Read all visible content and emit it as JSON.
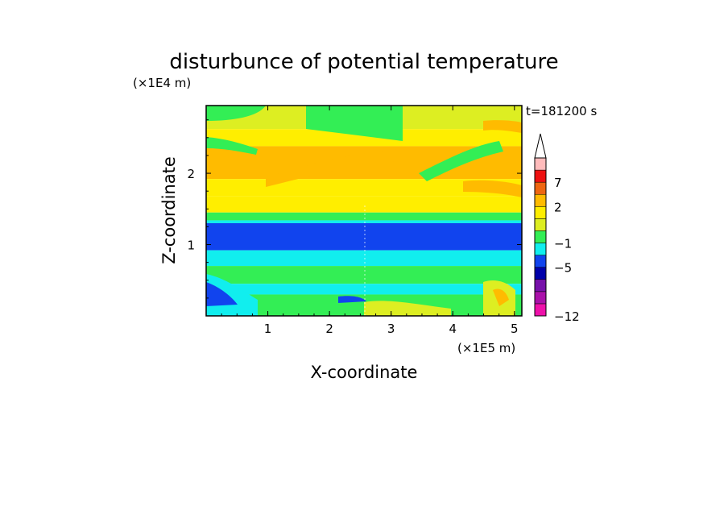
{
  "chart_data": {
    "type": "heatmap",
    "title": "disturbunce of potential temperature",
    "time_label": "t=181200 s",
    "xlabel": "X-coordinate",
    "ylabel": "Z-coordinate",
    "x_unit": "(×1E5 m)",
    "y_unit": "(×1E4 m)",
    "xlim": [
      0,
      5.12
    ],
    "ylim": [
      0,
      2.95
    ],
    "x_ticks": [
      1,
      2,
      3,
      4,
      5
    ],
    "y_ticks": [
      1,
      2
    ],
    "x_tick_labels": [
      "1",
      "2",
      "3",
      "4",
      "5"
    ],
    "y_tick_labels": [
      "1",
      "2"
    ],
    "colorbar": {
      "levels": [
        -12,
        -11,
        -9,
        -7,
        -5,
        -3,
        -1,
        0,
        1,
        2,
        4,
        7,
        9,
        11
      ],
      "colors": [
        "#ee11aa",
        "#aa11aa",
        "#7711aa",
        "#0000aa",
        "#1144ee",
        "#11eeee",
        "#33ee55",
        "#ddee22",
        "#ffee00",
        "#ffbb00",
        "#ee6611",
        "#ee1111",
        "#ffbbbb"
      ],
      "extend_max_color": "#ffffff",
      "tick_values": [
        -12,
        -5,
        -1,
        2,
        7
      ],
      "tick_labels": [
        "−12",
        "−5",
        "−1",
        "2",
        "7"
      ]
    },
    "bands": [
      {
        "z0": 2.95,
        "z1": 2.62,
        "value": 0.5
      },
      {
        "z0": 2.62,
        "z1": 2.38,
        "value": 1.5
      },
      {
        "z0": 2.38,
        "z1": 1.92,
        "value": 2.5
      },
      {
        "z0": 1.92,
        "z1": 1.68,
        "value": 1.5
      },
      {
        "z0": 1.68,
        "z1": 1.45,
        "value": 1.5
      },
      {
        "z0": 1.45,
        "z1": 1.34,
        "value": -0.5
      },
      {
        "z0": 1.34,
        "z1": 1.3,
        "value": -2.0
      },
      {
        "z0": 1.3,
        "z1": 0.92,
        "value": -4.0
      },
      {
        "z0": 0.92,
        "z1": 0.7,
        "value": -2.0
      },
      {
        "z0": 0.7,
        "z1": 0.45,
        "value": -0.5
      },
      {
        "z0": 0.45,
        "z1": 0.3,
        "value": -2.0
      },
      {
        "z0": 0.3,
        "z1": 0.0,
        "value": -0.5
      }
    ]
  }
}
